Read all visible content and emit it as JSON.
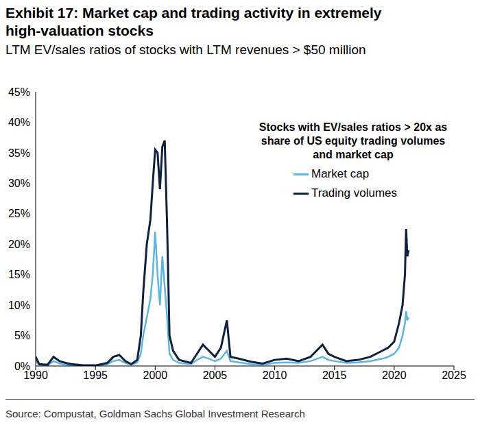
{
  "chart_data": {
    "type": "line",
    "title": "Exhibit 17: Market cap and trading activity in extremely high-valuation stocks",
    "subtitle": "LTM EV/sales ratios of stocks with LTM revenues > $50 million",
    "legend_title": "Stocks with EV/sales ratios > 20x as share of US equity trading volumes and market cap",
    "source": "Source: Compustat, Goldman Sachs Global Investment Research",
    "x": [
      1990.0,
      1990.3,
      1991.0,
      1991.5,
      1992.0,
      1992.5,
      1993.0,
      1994.0,
      1995.0,
      1996.0,
      1996.5,
      1997.0,
      1997.5,
      1998.0,
      1998.5,
      1998.8,
      1999.0,
      1999.3,
      1999.6,
      1999.8,
      2000.0,
      2000.2,
      2000.4,
      2000.6,
      2000.8,
      2001.0,
      2001.2,
      2001.5,
      2002.0,
      2003.0,
      2003.5,
      2004.0,
      2004.5,
      2005.0,
      2005.5,
      2006.0,
      2006.3,
      2007.0,
      2008.0,
      2009.0,
      2010.0,
      2011.0,
      2012.0,
      2013.0,
      2014.0,
      2014.5,
      2015.0,
      2016.0,
      2017.0,
      2018.0,
      2019.0,
      2019.5,
      2020.0,
      2020.4,
      2020.7,
      2020.9,
      2021.0,
      2021.1,
      2021.2
    ],
    "series": [
      {
        "name": "Market cap",
        "color": "#5ab4e5",
        "values": [
          0.8,
          0.2,
          0.1,
          0.8,
          0.4,
          0.2,
          0.1,
          0,
          0,
          0.3,
          0.8,
          1,
          0.5,
          0.2,
          0.6,
          2,
          5,
          8,
          11,
          15,
          22,
          15,
          10,
          18,
          13,
          8,
          2,
          1,
          0.5,
          0.3,
          1,
          1.5,
          1.2,
          0.8,
          1.2,
          2.5,
          0.8,
          0.6,
          0.3,
          0.2,
          0.5,
          0.6,
          0.5,
          0.8,
          1.5,
          1,
          0.8,
          0.5,
          0.6,
          0.8,
          1.2,
          1.5,
          2,
          3,
          5,
          7,
          9,
          7.5,
          8
        ]
      },
      {
        "name": "Trading volumes",
        "color": "#0d2240",
        "values": [
          1.5,
          0.3,
          0.2,
          1.5,
          0.8,
          0.5,
          0.3,
          0.1,
          0.1,
          0.5,
          1.5,
          1.8,
          0.8,
          0.3,
          1,
          5,
          12,
          20,
          24,
          30,
          35.5,
          35,
          29,
          36,
          37,
          23,
          5,
          2.5,
          1,
          0.5,
          2,
          3.5,
          2.5,
          1.5,
          3,
          7.5,
          1.5,
          1.2,
          0.7,
          0.4,
          1,
          1.2,
          0.8,
          1.5,
          3.5,
          2,
          1.5,
          0.8,
          1,
          1.5,
          2.5,
          3,
          4,
          7,
          10,
          15,
          22.5,
          18,
          19
        ]
      }
    ],
    "xlim": [
      1990,
      2025
    ],
    "xticks": [
      1990,
      1995,
      2000,
      2005,
      2010,
      2015,
      2020,
      2025
    ],
    "ylim": [
      0,
      45
    ],
    "yticks": [
      {
        "value": 0,
        "label": "0%"
      },
      {
        "value": 5,
        "label": "5%"
      },
      {
        "value": 10,
        "label": "10%"
      },
      {
        "value": 15,
        "label": "15%"
      },
      {
        "value": 20,
        "label": "20%"
      },
      {
        "value": 25,
        "label": "25%"
      },
      {
        "value": 30,
        "label": "30%"
      },
      {
        "value": 35,
        "label": "35%"
      },
      {
        "value": 40,
        "label": "40%"
      },
      {
        "value": 45,
        "label": "45%"
      }
    ],
    "grid": false,
    "legend": "upper right"
  }
}
